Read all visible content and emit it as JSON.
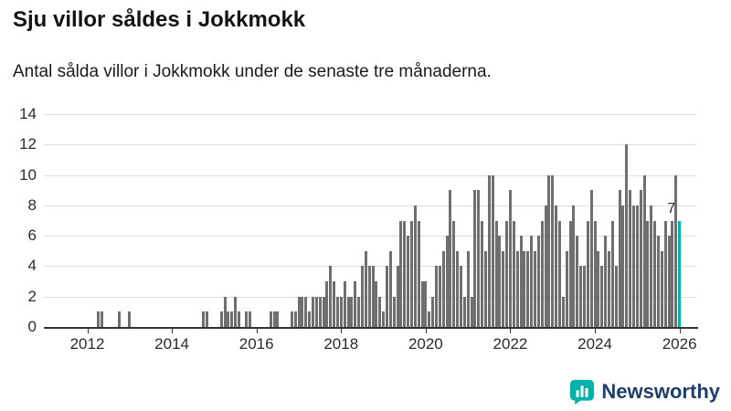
{
  "header": {
    "title": "Sju villor såldes i Jokkmokk",
    "subtitle": "Antal sålda villor i Jokkmokk under de senaste tre månaderna."
  },
  "colors": {
    "bar": "#6f6f6f",
    "highlight": "#00b2a9",
    "axis": "#333333",
    "grid": "#dcdcdc",
    "brand_text": "#1f3e6e"
  },
  "chart_data": {
    "type": "bar",
    "title": "Sju villor såldes i Jokkmokk",
    "subtitle": "Antal sålda villor i Jokkmokk under de senaste tre månaderna.",
    "ylabel": "",
    "xlabel": "",
    "ylim": [
      0,
      14
    ],
    "yticks": [
      0,
      2,
      4,
      6,
      8,
      10,
      12,
      14
    ],
    "xticks": [
      2012,
      2014,
      2016,
      2018,
      2020,
      2022,
      2024,
      2026
    ],
    "grid": true,
    "legend": false,
    "start": "2011-07",
    "x_domain": [
      "2011-03",
      "2026-05"
    ],
    "values": [
      0,
      0,
      0,
      0,
      0,
      0,
      0,
      0,
      0,
      1,
      1,
      0,
      0,
      0,
      0,
      1,
      0,
      0,
      1,
      0,
      0,
      0,
      0,
      0,
      0,
      0,
      0,
      0,
      0,
      0,
      0,
      0,
      0,
      0,
      0,
      0,
      0,
      0,
      0,
      1,
      1,
      0,
      0,
      0,
      1,
      2,
      1,
      1,
      2,
      1,
      0,
      1,
      1,
      0,
      0,
      0,
      0,
      0,
      1,
      1,
      1,
      0,
      0,
      0,
      1,
      1,
      2,
      2,
      2,
      1,
      2,
      2,
      2,
      2,
      3,
      4,
      3,
      2,
      2,
      3,
      2,
      2,
      3,
      2,
      4,
      5,
      4,
      4,
      3,
      2,
      1,
      4,
      5,
      2,
      4,
      7,
      7,
      6,
      7,
      8,
      7,
      3,
      3,
      1,
      2,
      4,
      4,
      5,
      6,
      9,
      7,
      5,
      4,
      2,
      5,
      2,
      9,
      9,
      7,
      5,
      10,
      10,
      7,
      6,
      5,
      7,
      9,
      7,
      5,
      6,
      5,
      5,
      6,
      5,
      6,
      7,
      8,
      10,
      10,
      8,
      7,
      2,
      5,
      7,
      8,
      6,
      4,
      4,
      7,
      9,
      7,
      5,
      4,
      6,
      5,
      7,
      4,
      9,
      8,
      12,
      9,
      8,
      8,
      9,
      10,
      7,
      8,
      7,
      6,
      5,
      7,
      6,
      7,
      10,
      7
    ],
    "annotation": {
      "text": "7",
      "value": 7
    }
  },
  "footer": {
    "brand": "Newsworthy"
  }
}
